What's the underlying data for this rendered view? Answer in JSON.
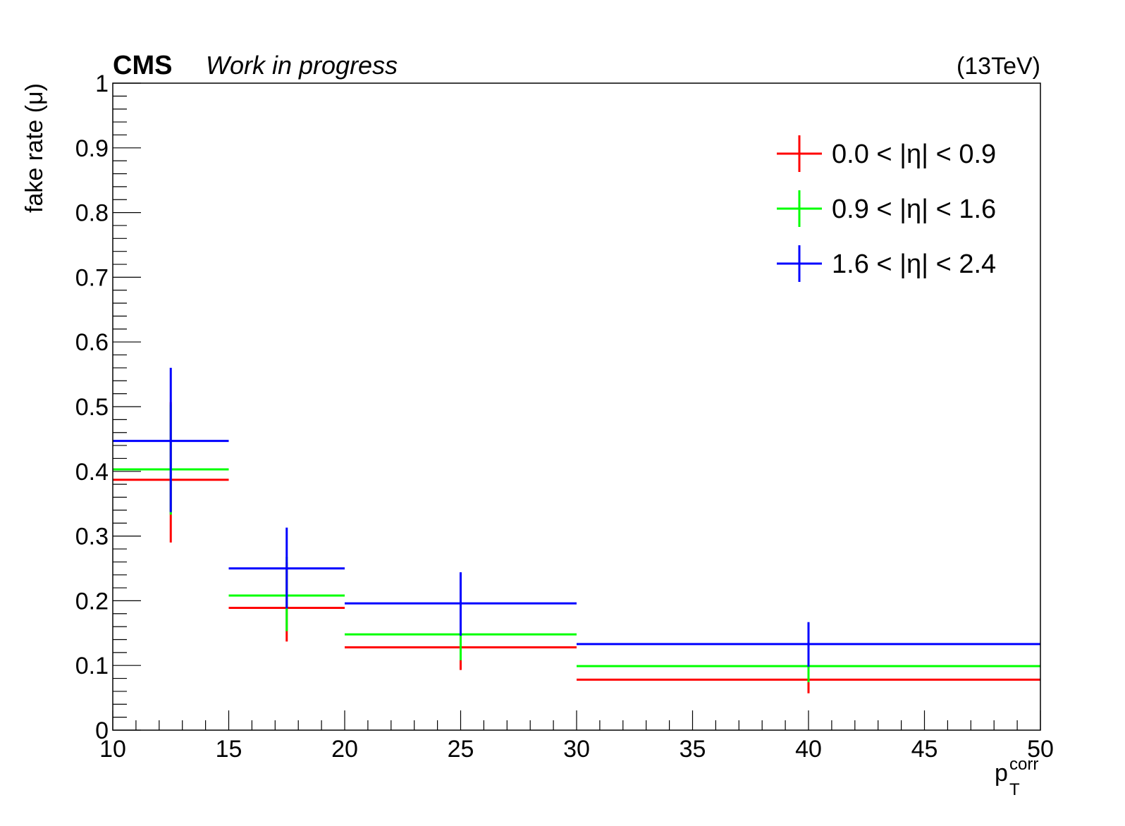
{
  "header": {
    "experiment": "CMS",
    "extra_text": "Work in progress",
    "energy": "(13TeV)"
  },
  "chart_data": {
    "type": "errorbar",
    "ylabel": "fake rate (μ)",
    "xlabel": {
      "base": "p",
      "sub": "T",
      "sup": "corr"
    },
    "xlim": [
      10,
      50
    ],
    "ylim": [
      0,
      1
    ],
    "x_major_ticks": [
      10,
      15,
      20,
      25,
      30,
      35,
      40,
      45,
      50
    ],
    "x_tick_labels": [
      "10",
      "15",
      "20",
      "25",
      "30",
      "35",
      "40",
      "45",
      "50"
    ],
    "y_major_ticks": [
      0,
      0.1,
      0.2,
      0.3,
      0.4,
      0.5,
      0.6,
      0.7,
      0.8,
      0.9,
      1
    ],
    "y_tick_labels": [
      "0",
      "0.1",
      "0.2",
      "0.3",
      "0.4",
      "0.5",
      "0.6",
      "0.7",
      "0.8",
      "0.9",
      "1"
    ],
    "bins": [
      [
        10,
        15
      ],
      [
        15,
        20
      ],
      [
        20,
        30
      ],
      [
        30,
        50
      ]
    ],
    "legend_position": "top-right",
    "series": [
      {
        "name": "0.0 < |η| < 0.9",
        "color": "#ff0000",
        "values": [
          0.387,
          0.189,
          0.128,
          0.078
        ],
        "err_low": [
          0.097,
          0.052,
          0.035,
          0.021
        ],
        "err_high": [
          0.12,
          0.07,
          0.05,
          0.03
        ]
      },
      {
        "name": "0.9 < |η| < 1.6",
        "color": "#00ff00",
        "values": [
          0.403,
          0.208,
          0.148,
          0.099
        ],
        "err_low": [
          0.07,
          0.055,
          0.04,
          0.025
        ],
        "err_high": [
          0.1,
          0.06,
          0.05,
          0.03
        ]
      },
      {
        "name": "1.6 < |η| < 2.4",
        "color": "#0000ff",
        "values": [
          0.447,
          0.25,
          0.196,
          0.133
        ],
        "err_low": [
          0.11,
          0.062,
          0.05,
          0.035
        ],
        "err_high": [
          0.113,
          0.063,
          0.048,
          0.034
        ]
      }
    ]
  }
}
